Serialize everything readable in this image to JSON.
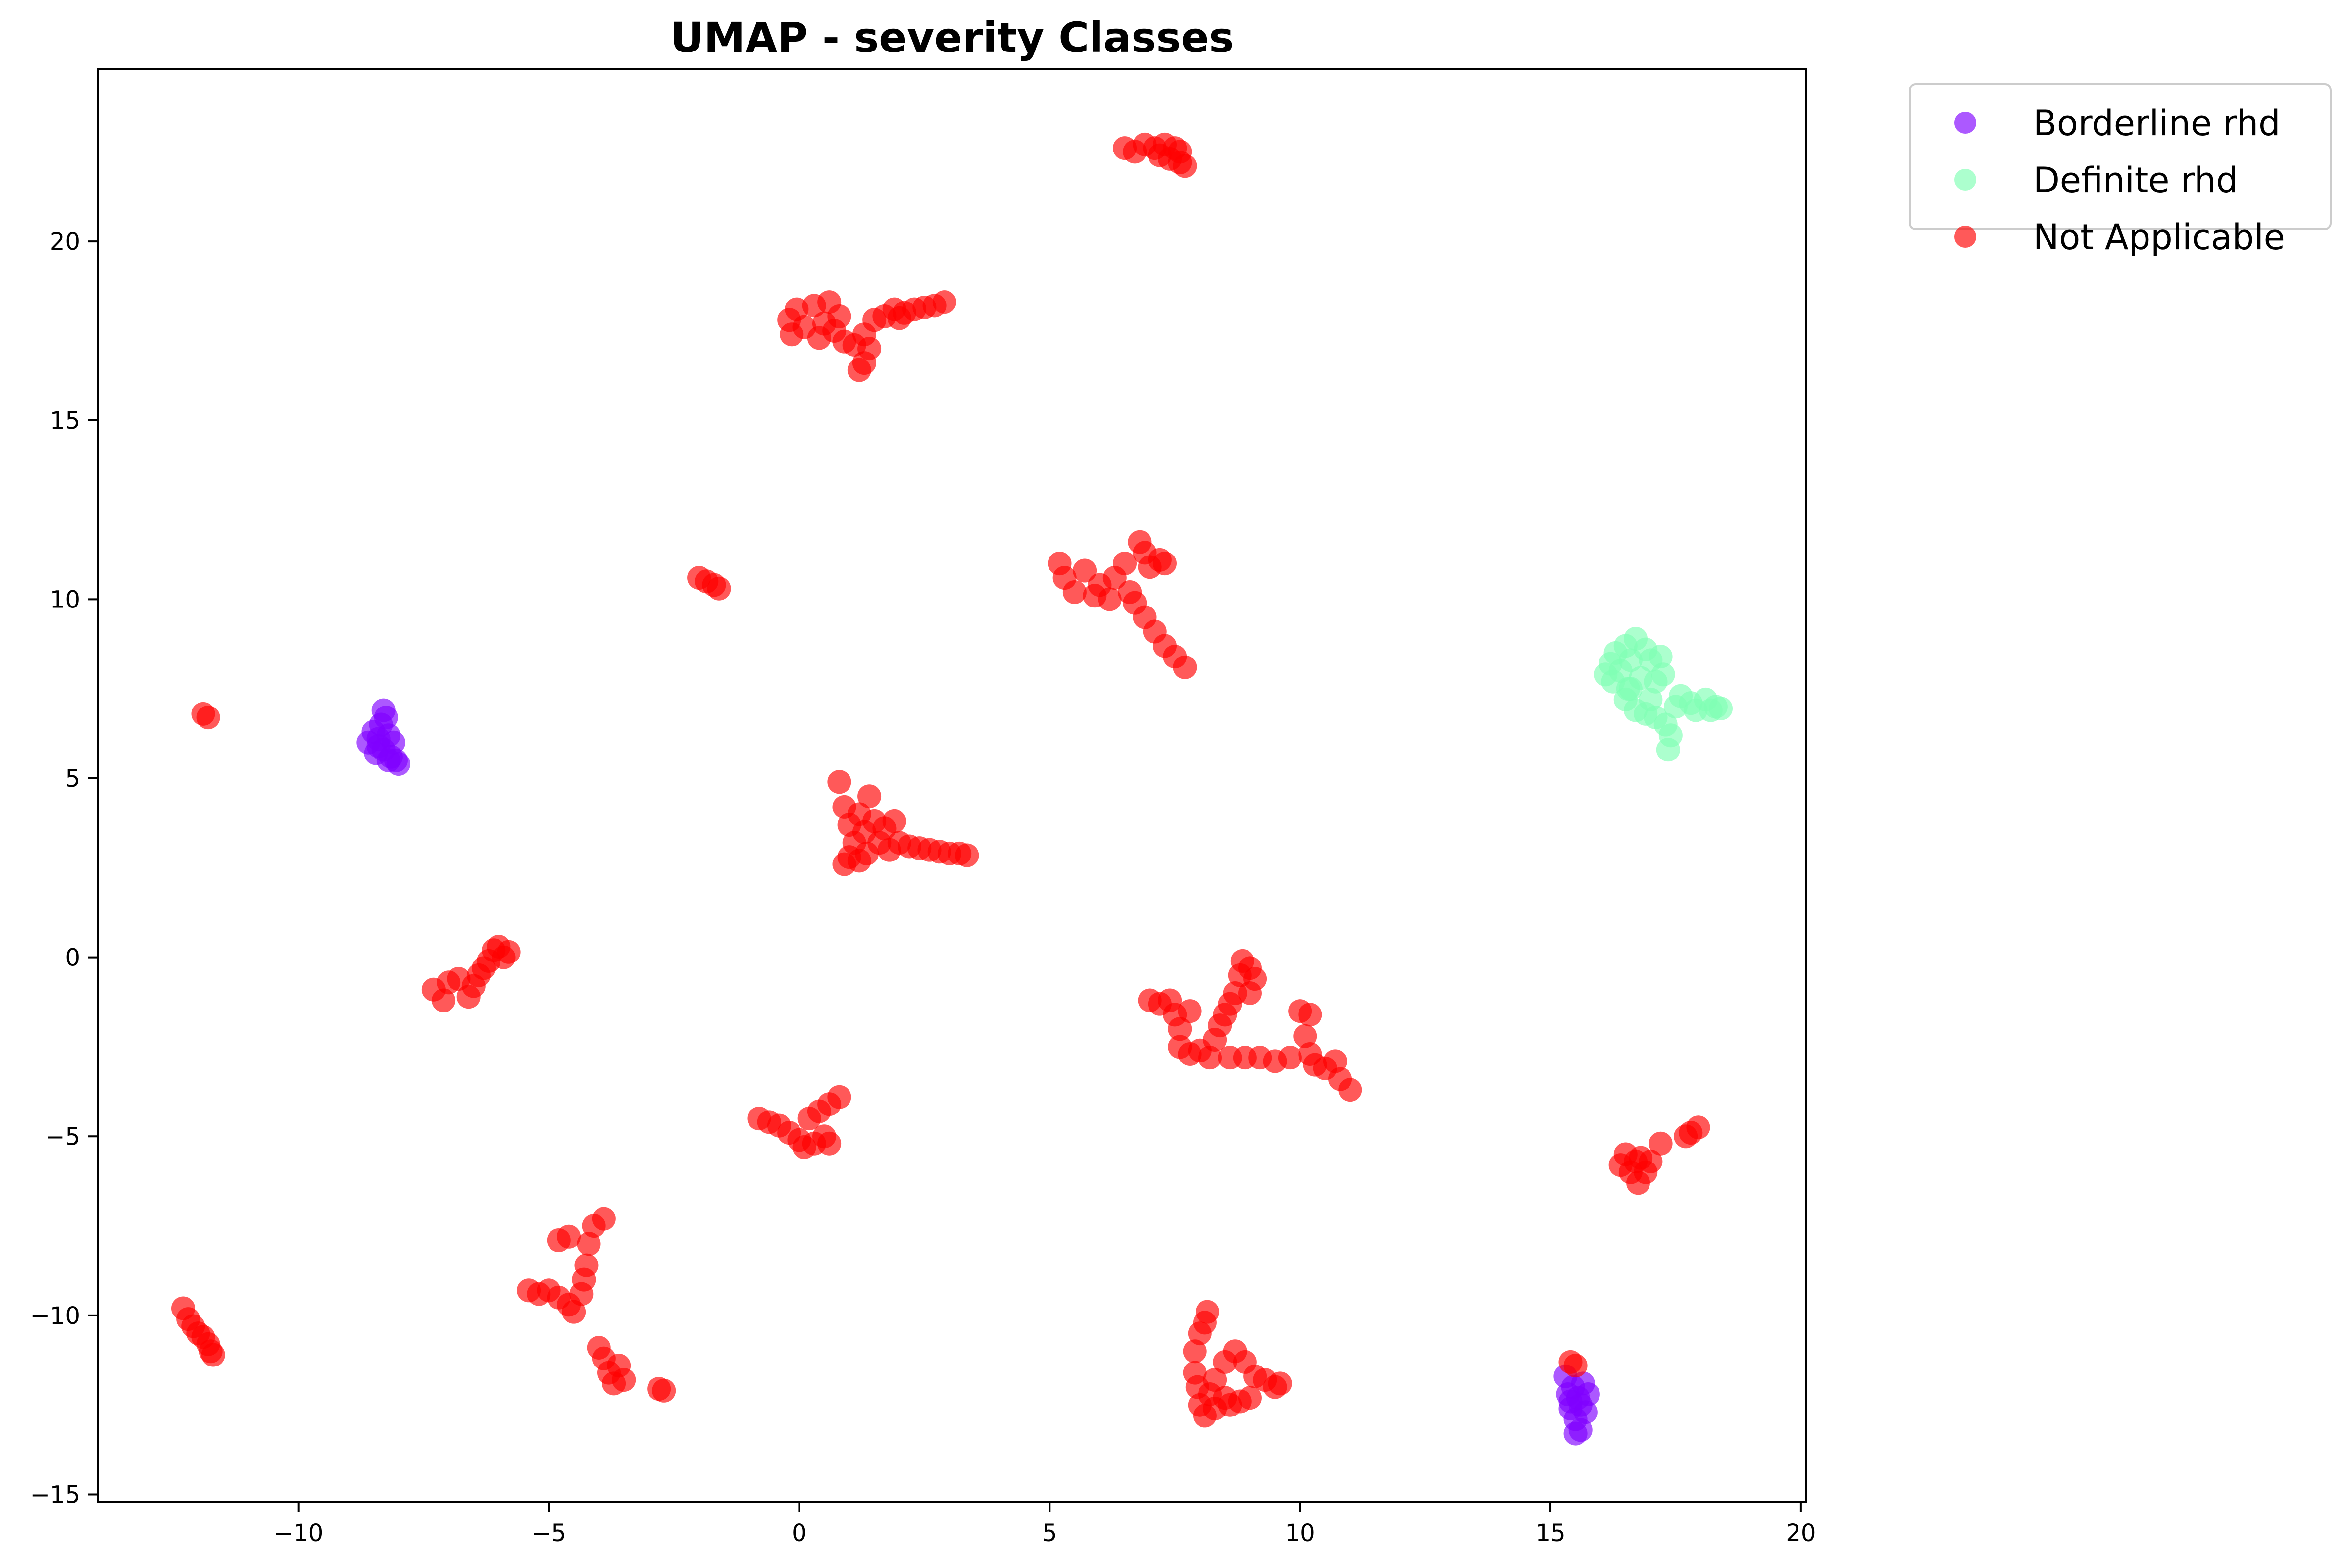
{
  "chart_data": {
    "type": "scatter",
    "title": "UMAP - severity Classes",
    "xlabel": "",
    "ylabel": "",
    "xlim": [
      -14.0,
      20.1
    ],
    "ylim": [
      -15.2,
      24.8
    ],
    "xticks": [
      -10,
      -5,
      0,
      5,
      10,
      15,
      20
    ],
    "yticks": [
      -15,
      -10,
      -5,
      0,
      5,
      10,
      15,
      20
    ],
    "xtick_labels": [
      "−10",
      "−5",
      "0",
      "5",
      "10",
      "15",
      "20"
    ],
    "ytick_labels": [
      "−15",
      "−10",
      "−5",
      "0",
      "5",
      "10",
      "15",
      "20"
    ],
    "grid": false,
    "legend_position": "outside-top-right",
    "series": [
      {
        "name": "Borderline rhd",
        "color": "#8000ff",
        "points": [
          [
            -8.6,
            6.0
          ],
          [
            -8.5,
            6.3
          ],
          [
            -8.45,
            5.7
          ],
          [
            -8.4,
            6.1
          ],
          [
            -8.35,
            6.5
          ],
          [
            -8.3,
            5.8
          ],
          [
            -8.25,
            6.7
          ],
          [
            -8.2,
            6.2
          ],
          [
            -8.15,
            5.6
          ],
          [
            -8.1,
            6.0
          ],
          [
            -8.05,
            5.5
          ],
          [
            -8.0,
            5.4
          ],
          [
            -8.3,
            6.9
          ],
          [
            -8.4,
            5.9
          ],
          [
            -8.2,
            5.5
          ],
          [
            15.3,
            -11.7
          ],
          [
            15.35,
            -12.2
          ],
          [
            15.4,
            -12.6
          ],
          [
            15.45,
            -12.0
          ],
          [
            15.5,
            -12.9
          ],
          [
            15.55,
            -12.3
          ],
          [
            15.6,
            -13.2
          ],
          [
            15.6,
            -12.5
          ],
          [
            15.65,
            -11.9
          ],
          [
            15.7,
            -12.7
          ],
          [
            15.75,
            -12.2
          ],
          [
            15.5,
            -13.3
          ],
          [
            15.4,
            -12.4
          ]
        ]
      },
      {
        "name": "Definite rhd",
        "color": "#80ffb4",
        "points": [
          [
            16.1,
            7.9
          ],
          [
            16.2,
            8.2
          ],
          [
            16.25,
            7.7
          ],
          [
            16.3,
            8.5
          ],
          [
            16.4,
            8.0
          ],
          [
            16.5,
            8.7
          ],
          [
            16.55,
            7.5
          ],
          [
            16.6,
            8.3
          ],
          [
            16.7,
            8.9
          ],
          [
            16.8,
            7.8
          ],
          [
            16.9,
            8.6
          ],
          [
            17.0,
            8.3
          ],
          [
            17.1,
            7.7
          ],
          [
            17.2,
            8.4
          ],
          [
            17.25,
            7.9
          ],
          [
            16.5,
            7.2
          ],
          [
            16.7,
            6.9
          ],
          [
            16.9,
            6.8
          ],
          [
            17.1,
            6.7
          ],
          [
            17.3,
            6.5
          ],
          [
            17.4,
            6.2
          ],
          [
            17.35,
            5.8
          ],
          [
            17.5,
            7.0
          ],
          [
            17.6,
            7.3
          ],
          [
            17.8,
            7.1
          ],
          [
            17.9,
            6.9
          ],
          [
            18.1,
            7.2
          ],
          [
            18.2,
            6.9
          ],
          [
            18.3,
            7.0
          ],
          [
            18.4,
            6.95
          ],
          [
            17.0,
            7.2
          ],
          [
            16.6,
            7.5
          ]
        ]
      },
      {
        "name": "Not Applicable",
        "color": "#ff0000",
        "points": [
          [
            -11.9,
            6.8
          ],
          [
            -11.8,
            6.7
          ],
          [
            -2.0,
            10.6
          ],
          [
            -1.85,
            10.5
          ],
          [
            -1.7,
            10.4
          ],
          [
            -1.6,
            10.3
          ],
          [
            -12.3,
            -9.8
          ],
          [
            -12.2,
            -10.1
          ],
          [
            -12.1,
            -10.3
          ],
          [
            -12.0,
            -10.5
          ],
          [
            -11.9,
            -10.6
          ],
          [
            -11.8,
            -10.8
          ],
          [
            -11.75,
            -11.0
          ],
          [
            -11.7,
            -11.1
          ],
          [
            -7.3,
            -0.9
          ],
          [
            -7.1,
            -1.2
          ],
          [
            -7.0,
            -0.7
          ],
          [
            -6.8,
            -0.6
          ],
          [
            -6.6,
            -1.1
          ],
          [
            -6.5,
            -0.8
          ],
          [
            -6.4,
            -0.5
          ],
          [
            -6.3,
            -0.3
          ],
          [
            -6.2,
            -0.1
          ],
          [
            -6.1,
            0.2
          ],
          [
            -5.9,
            0.0
          ],
          [
            -5.8,
            0.15
          ],
          [
            -6.0,
            0.3
          ],
          [
            -5.4,
            -9.3
          ],
          [
            -5.2,
            -9.4
          ],
          [
            -5.0,
            -9.3
          ],
          [
            -4.8,
            -9.5
          ],
          [
            -4.6,
            -9.7
          ],
          [
            -4.5,
            -9.9
          ],
          [
            -4.35,
            -9.4
          ],
          [
            -4.3,
            -9.0
          ],
          [
            -4.25,
            -8.6
          ],
          [
            -4.2,
            -8.0
          ],
          [
            -4.1,
            -7.5
          ],
          [
            -3.9,
            -7.3
          ],
          [
            -4.8,
            -7.9
          ],
          [
            -4.6,
            -7.8
          ],
          [
            -4.0,
            -10.9
          ],
          [
            -3.9,
            -11.2
          ],
          [
            -3.8,
            -11.6
          ],
          [
            -3.7,
            -11.9
          ],
          [
            -3.6,
            -11.4
          ],
          [
            -3.5,
            -11.8
          ],
          [
            -2.7,
            -12.1
          ],
          [
            -2.8,
            -12.05
          ],
          [
            -0.8,
            -4.5
          ],
          [
            -0.6,
            -4.6
          ],
          [
            -0.4,
            -4.7
          ],
          [
            -0.2,
            -4.9
          ],
          [
            0.0,
            -5.1
          ],
          [
            0.1,
            -5.3
          ],
          [
            0.3,
            -5.2
          ],
          [
            0.5,
            -5.0
          ],
          [
            0.6,
            -5.2
          ],
          [
            0.2,
            -4.5
          ],
          [
            0.4,
            -4.3
          ],
          [
            0.6,
            -4.1
          ],
          [
            0.8,
            -3.9
          ],
          [
            -0.2,
            17.8
          ],
          [
            -0.15,
            17.4
          ],
          [
            -0.05,
            18.1
          ],
          [
            0.1,
            17.6
          ],
          [
            0.3,
            18.2
          ],
          [
            0.4,
            17.3
          ],
          [
            0.5,
            17.7
          ],
          [
            0.6,
            18.3
          ],
          [
            0.7,
            17.5
          ],
          [
            0.8,
            17.9
          ],
          [
            0.9,
            17.2
          ],
          [
            1.1,
            17.1
          ],
          [
            1.3,
            17.4
          ],
          [
            1.4,
            17.0
          ],
          [
            1.3,
            16.6
          ],
          [
            1.2,
            16.4
          ],
          [
            1.5,
            17.8
          ],
          [
            1.7,
            17.9
          ],
          [
            1.9,
            18.1
          ],
          [
            2.1,
            18.0
          ],
          [
            2.3,
            18.1
          ],
          [
            2.5,
            18.15
          ],
          [
            2.7,
            18.2
          ],
          [
            2.9,
            18.3
          ],
          [
            2.0,
            17.85
          ],
          [
            0.8,
            4.9
          ],
          [
            0.9,
            4.2
          ],
          [
            1.0,
            3.7
          ],
          [
            1.0,
            2.8
          ],
          [
            1.1,
            3.2
          ],
          [
            1.2,
            4.0
          ],
          [
            1.3,
            3.5
          ],
          [
            1.35,
            2.9
          ],
          [
            1.4,
            4.5
          ],
          [
            1.5,
            3.8
          ],
          [
            1.6,
            3.2
          ],
          [
            1.7,
            3.6
          ],
          [
            1.8,
            3.0
          ],
          [
            1.9,
            3.8
          ],
          [
            0.9,
            2.6
          ],
          [
            1.2,
            2.7
          ],
          [
            2.2,
            3.1
          ],
          [
            2.4,
            3.05
          ],
          [
            2.6,
            3.0
          ],
          [
            2.8,
            2.95
          ],
          [
            3.0,
            2.9
          ],
          [
            3.2,
            2.9
          ],
          [
            3.35,
            2.85
          ],
          [
            2.0,
            3.2
          ],
          [
            5.2,
            11.0
          ],
          [
            5.3,
            10.6
          ],
          [
            5.5,
            10.2
          ],
          [
            5.7,
            10.8
          ],
          [
            5.9,
            10.1
          ],
          [
            6.0,
            10.4
          ],
          [
            6.2,
            10.0
          ],
          [
            6.3,
            10.6
          ],
          [
            6.5,
            11.0
          ],
          [
            6.6,
            10.2
          ],
          [
            6.8,
            11.6
          ],
          [
            6.9,
            11.3
          ],
          [
            7.0,
            10.9
          ],
          [
            7.2,
            11.1
          ],
          [
            7.3,
            11.0
          ],
          [
            6.7,
            9.9
          ],
          [
            6.9,
            9.5
          ],
          [
            7.1,
            9.1
          ],
          [
            7.3,
            8.7
          ],
          [
            7.5,
            8.4
          ],
          [
            7.7,
            8.1
          ],
          [
            6.5,
            22.6
          ],
          [
            6.7,
            22.5
          ],
          [
            6.9,
            22.7
          ],
          [
            7.1,
            22.6
          ],
          [
            7.2,
            22.4
          ],
          [
            7.3,
            22.7
          ],
          [
            7.4,
            22.3
          ],
          [
            7.5,
            22.6
          ],
          [
            7.6,
            22.2
          ],
          [
            7.7,
            22.1
          ],
          [
            7.6,
            22.5
          ],
          [
            7.0,
            -1.2
          ],
          [
            7.2,
            -1.3
          ],
          [
            7.4,
            -1.2
          ],
          [
            7.5,
            -1.6
          ],
          [
            7.6,
            -2.0
          ],
          [
            7.6,
            -2.5
          ],
          [
            7.8,
            -2.7
          ],
          [
            8.0,
            -2.6
          ],
          [
            8.2,
            -2.8
          ],
          [
            8.3,
            -2.3
          ],
          [
            8.4,
            -1.9
          ],
          [
            8.5,
            -1.6
          ],
          [
            8.6,
            -1.3
          ],
          [
            8.7,
            -1.0
          ],
          [
            8.8,
            -0.5
          ],
          [
            8.85,
            -0.1
          ],
          [
            9.0,
            -0.3
          ],
          [
            9.1,
            -0.6
          ],
          [
            9.0,
            -1.0
          ],
          [
            8.6,
            -2.8
          ],
          [
            8.9,
            -2.8
          ],
          [
            9.2,
            -2.8
          ],
          [
            9.5,
            -2.9
          ],
          [
            9.8,
            -2.8
          ],
          [
            10.0,
            -1.5
          ],
          [
            10.2,
            -1.6
          ],
          [
            10.1,
            -2.2
          ],
          [
            10.2,
            -2.7
          ],
          [
            10.3,
            -3.0
          ],
          [
            10.5,
            -3.1
          ],
          [
            10.7,
            -2.9
          ],
          [
            10.8,
            -3.4
          ],
          [
            11.0,
            -3.7
          ],
          [
            7.8,
            -1.5
          ],
          [
            7.9,
            -11.0
          ],
          [
            8.0,
            -10.5
          ],
          [
            8.1,
            -10.2
          ],
          [
            8.15,
            -9.9
          ],
          [
            7.9,
            -11.6
          ],
          [
            7.95,
            -12.0
          ],
          [
            8.0,
            -12.5
          ],
          [
            8.1,
            -12.8
          ],
          [
            8.3,
            -12.6
          ],
          [
            8.5,
            -12.3
          ],
          [
            8.3,
            -11.8
          ],
          [
            8.5,
            -11.3
          ],
          [
            8.7,
            -11.0
          ],
          [
            8.9,
            -11.3
          ],
          [
            9.1,
            -11.7
          ],
          [
            9.3,
            -11.8
          ],
          [
            9.5,
            -12.0
          ],
          [
            9.6,
            -11.9
          ],
          [
            9.0,
            -12.3
          ],
          [
            8.8,
            -12.4
          ],
          [
            8.6,
            -12.5
          ],
          [
            8.2,
            -12.2
          ],
          [
            16.4,
            -5.8
          ],
          [
            16.5,
            -5.5
          ],
          [
            16.6,
            -6.0
          ],
          [
            16.7,
            -5.7
          ],
          [
            16.75,
            -6.3
          ],
          [
            16.8,
            -5.6
          ],
          [
            16.9,
            -6.0
          ],
          [
            17.0,
            -5.7
          ],
          [
            17.2,
            -5.2
          ],
          [
            17.7,
            -5.0
          ],
          [
            17.8,
            -4.9
          ],
          [
            17.95,
            -4.75
          ],
          [
            15.4,
            -11.3
          ],
          [
            15.5,
            -11.4
          ]
        ]
      }
    ]
  }
}
